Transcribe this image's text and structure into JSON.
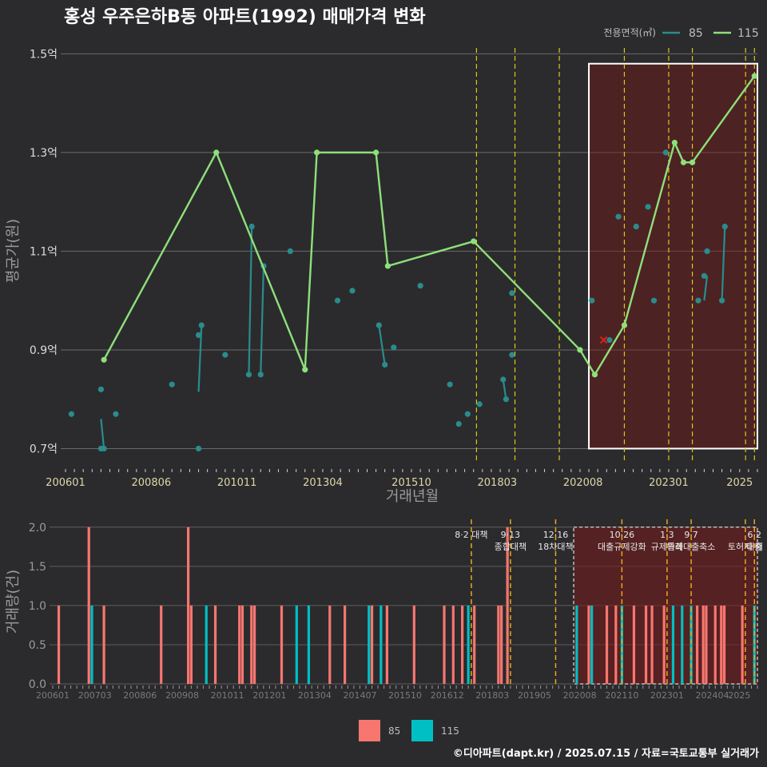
{
  "title": "홍성 우주은하B동 아파트(1992) 매매가격 변화",
  "footer": "©디아파트(dapt.kr) / 2025.07.15 / 자료=국토교통부 실거래가",
  "chart_data": [
    {
      "type": "line",
      "xlabel": "거래년월",
      "ylabel": "평균가(원)",
      "legend_title": "전용면적(㎡)",
      "legend_position": "top-right",
      "x_tick_labels": [
        "200601",
        "200806",
        "201011",
        "201304",
        "201510",
        "201803",
        "202008",
        "202301",
        "2025"
      ],
      "y_tick_labels": [
        "0.7억",
        "0.9억",
        "1.1억",
        "1.3억",
        "1.5억"
      ],
      "ylim": [
        0.67,
        1.52
      ],
      "xlim": [
        "2006-01",
        "2025-07"
      ],
      "grid": true,
      "series": [
        {
          "name": "85",
          "color": "#2a8c8c",
          "points": [
            {
              "x": "2006-03",
              "y": 0.77
            },
            {
              "x": "2007-01",
              "y": 0.82
            },
            {
              "x": "2007-01",
              "y": 0.7
            },
            {
              "x": "2007-02",
              "y": 0.7
            },
            {
              "x": "2007-06",
              "y": 0.77
            },
            {
              "x": "2009-01",
              "y": 0.83
            },
            {
              "x": "2009-10",
              "y": 0.7
            },
            {
              "x": "2009-10",
              "y": 0.93
            },
            {
              "x": "2009-11",
              "y": 0.95
            },
            {
              "x": "2010-07",
              "y": 0.89
            },
            {
              "x": "2011-03",
              "y": 0.85
            },
            {
              "x": "2011-04",
              "y": 1.15
            },
            {
              "x": "2011-07",
              "y": 0.85
            },
            {
              "x": "2011-08",
              "y": 1.07
            },
            {
              "x": "2012-05",
              "y": 1.1
            },
            {
              "x": "2013-09",
              "y": 1.0
            },
            {
              "x": "2014-02",
              "y": 1.02
            },
            {
              "x": "2014-11",
              "y": 0.95
            },
            {
              "x": "2015-01",
              "y": 0.87
            },
            {
              "x": "2015-04",
              "y": 0.905
            },
            {
              "x": "2016-01",
              "y": 1.03
            },
            {
              "x": "2016-11",
              "y": 0.83
            },
            {
              "x": "2017-02",
              "y": 0.75
            },
            {
              "x": "2017-05",
              "y": 0.77
            },
            {
              "x": "2017-09",
              "y": 0.79
            },
            {
              "x": "2018-05",
              "y": 0.84
            },
            {
              "x": "2018-06",
              "y": 0.8
            },
            {
              "x": "2018-08",
              "y": 1.015
            },
            {
              "x": "2018-08",
              "y": 0.89
            },
            {
              "x": "2020-11",
              "y": 1.0
            },
            {
              "x": "2021-05",
              "y": 0.92
            },
            {
              "x": "2021-08",
              "y": 1.17
            },
            {
              "x": "2022-02",
              "y": 1.15
            },
            {
              "x": "2022-06",
              "y": 1.19
            },
            {
              "x": "2022-08",
              "y": 1.0
            },
            {
              "x": "2022-12",
              "y": 1.3
            },
            {
              "x": "2023-09",
              "y": 1.28
            },
            {
              "x": "2023-11",
              "y": 1.0
            },
            {
              "x": "2024-01",
              "y": 1.05
            },
            {
              "x": "2024-02",
              "y": 1.1
            },
            {
              "x": "2024-07",
              "y": 1.0
            },
            {
              "x": "2024-08",
              "y": 1.15
            }
          ],
          "segments": [
            [
              {
                "x": "2007-01",
                "y": 0.76
              },
              {
                "x": "2007-02",
                "y": 0.7
              }
            ],
            [
              {
                "x": "2009-10",
                "y": 0.815
              },
              {
                "x": "2009-11",
                "y": 0.95
              }
            ],
            [
              {
                "x": "2011-03",
                "y": 0.85
              },
              {
                "x": "2011-04",
                "y": 1.15
              }
            ],
            [
              {
                "x": "2011-07",
                "y": 0.85
              },
              {
                "x": "2011-08",
                "y": 1.07
              }
            ],
            [
              {
                "x": "2014-11",
                "y": 0.95
              },
              {
                "x": "2015-01",
                "y": 0.87
              }
            ],
            [
              {
                "x": "2018-05",
                "y": 0.84
              },
              {
                "x": "2018-06",
                "y": 0.8
              }
            ],
            [
              {
                "x": "2024-01",
                "y": 1.0
              },
              {
                "x": "2024-02",
                "y": 1.05
              }
            ],
            [
              {
                "x": "2024-07",
                "y": 1.0
              },
              {
                "x": "2024-08",
                "y": 1.15
              }
            ]
          ]
        },
        {
          "name": "115",
          "color": "#8ee07a",
          "points": [
            {
              "x": "2007-02",
              "y": 0.88
            },
            {
              "x": "2010-04",
              "y": 1.3
            },
            {
              "x": "2012-10",
              "y": 0.86
            },
            {
              "x": "2013-02",
              "y": 1.3
            },
            {
              "x": "2014-10",
              "y": 1.3
            },
            {
              "x": "2015-02",
              "y": 1.07
            },
            {
              "x": "2017-07",
              "y": 1.12
            },
            {
              "x": "2020-07",
              "y": 0.9
            },
            {
              "x": "2020-12",
              "y": 0.85
            },
            {
              "x": "2021-10",
              "y": 0.95
            },
            {
              "x": "2023-03",
              "y": 1.32
            },
            {
              "x": "2023-06",
              "y": 1.28
            },
            {
              "x": "2023-09",
              "y": 1.28
            },
            {
              "x": "2025-06",
              "y": 1.455
            }
          ]
        }
      ],
      "marker": {
        "x": "2021-03",
        "y": 0.92,
        "symbol": "x",
        "color": "#e02020"
      },
      "policy_dates": [
        "2017-08",
        "2018-09",
        "2019-12",
        "2021-10",
        "2023-01",
        "2023-09",
        "2025-03",
        "2025-06"
      ],
      "highlight": {
        "x_start": "2020-10",
        "x_end": "2025-07",
        "y_start": 0.7,
        "y_end": 1.48
      }
    },
    {
      "type": "bar",
      "ylabel": "거래량(건)",
      "legend_position": "bottom",
      "x_tick_labels": [
        "200601",
        "200703",
        "200806",
        "200908",
        "201011",
        "201201",
        "201304",
        "201407",
        "201510",
        "201612",
        "201803",
        "201905",
        "202008",
        "202110",
        "202301",
        "202404",
        "2025"
      ],
      "y_tick_labels": [
        "0.0",
        "0.5",
        "1.0",
        "1.5",
        "2.0"
      ],
      "ylim": [
        0,
        2.1
      ],
      "grid": true,
      "series": [
        {
          "name": "85",
          "color": "#f87670",
          "bars": [
            {
              "x": "2006-03",
              "y": 1
            },
            {
              "x": "2007-01",
              "y": 2
            },
            {
              "x": "2007-06",
              "y": 1
            },
            {
              "x": "2009-01",
              "y": 1
            },
            {
              "x": "2009-10",
              "y": 2
            },
            {
              "x": "2009-11",
              "y": 1
            },
            {
              "x": "2010-07",
              "y": 1
            },
            {
              "x": "2011-03",
              "y": 1
            },
            {
              "x": "2011-04",
              "y": 1
            },
            {
              "x": "2011-07",
              "y": 1
            },
            {
              "x": "2011-08",
              "y": 1
            },
            {
              "x": "2012-05",
              "y": 1
            },
            {
              "x": "2013-09",
              "y": 1
            },
            {
              "x": "2014-02",
              "y": 1
            },
            {
              "x": "2014-11",
              "y": 1
            },
            {
              "x": "2015-04",
              "y": 1
            },
            {
              "x": "2016-01",
              "y": 1
            },
            {
              "x": "2016-11",
              "y": 1
            },
            {
              "x": "2017-02",
              "y": 1
            },
            {
              "x": "2017-05",
              "y": 1
            },
            {
              "x": "2017-09",
              "y": 1
            },
            {
              "x": "2018-05",
              "y": 1
            },
            {
              "x": "2018-06",
              "y": 1
            },
            {
              "x": "2018-08",
              "y": 2
            },
            {
              "x": "2020-11",
              "y": 1
            },
            {
              "x": "2021-05",
              "y": 1
            },
            {
              "x": "2021-08",
              "y": 1
            },
            {
              "x": "2022-02",
              "y": 1
            },
            {
              "x": "2022-06",
              "y": 1
            },
            {
              "x": "2022-08",
              "y": 1
            },
            {
              "x": "2022-12",
              "y": 1
            },
            {
              "x": "2023-11",
              "y": 1
            },
            {
              "x": "2024-01",
              "y": 1
            },
            {
              "x": "2024-02",
              "y": 1
            },
            {
              "x": "2024-05",
              "y": 1
            },
            {
              "x": "2024-07",
              "y": 1
            },
            {
              "x": "2024-08",
              "y": 1
            },
            {
              "x": "2025-02",
              "y": 1
            }
          ]
        },
        {
          "name": "115",
          "color": "#00bfc4",
          "bars": [
            {
              "x": "2007-02",
              "y": 1
            },
            {
              "x": "2010-04",
              "y": 1
            },
            {
              "x": "2012-10",
              "y": 1
            },
            {
              "x": "2013-02",
              "y": 1
            },
            {
              "x": "2014-10",
              "y": 1
            },
            {
              "x": "2015-02",
              "y": 1
            },
            {
              "x": "2017-07",
              "y": 1
            },
            {
              "x": "2020-07",
              "y": 1
            },
            {
              "x": "2020-12",
              "y": 1
            },
            {
              "x": "2021-10",
              "y": 1
            },
            {
              "x": "2023-03",
              "y": 1
            },
            {
              "x": "2023-06",
              "y": 1
            },
            {
              "x": "2023-09",
              "y": 1
            },
            {
              "x": "2025-06",
              "y": 1
            }
          ]
        }
      ],
      "policies": [
        {
          "date": "2017-08",
          "lines": [
            "8·2 대책"
          ]
        },
        {
          "date": "2018-09",
          "lines": [
            "9·13",
            "종합대책"
          ]
        },
        {
          "date": "2019-12",
          "lines": [
            "12·16",
            "18차대책"
          ]
        },
        {
          "date": "2021-10",
          "lines": [
            "10·26",
            "대출규제강화"
          ]
        },
        {
          "date": "2023-01",
          "lines": [
            "1·3",
            "규제완화"
          ]
        },
        {
          "date": "2023-09",
          "lines": [
            "9·7",
            "특례대출축소"
          ]
        },
        {
          "date": "2025-03",
          "lines": [
            "",
            "토허제 해"
          ]
        },
        {
          "date": "2025-06",
          "lines": [
            "6·2",
            "대출"
          ]
        }
      ],
      "highlight": {
        "x_start": "2020-06",
        "x_end": "2025-07"
      }
    }
  ]
}
